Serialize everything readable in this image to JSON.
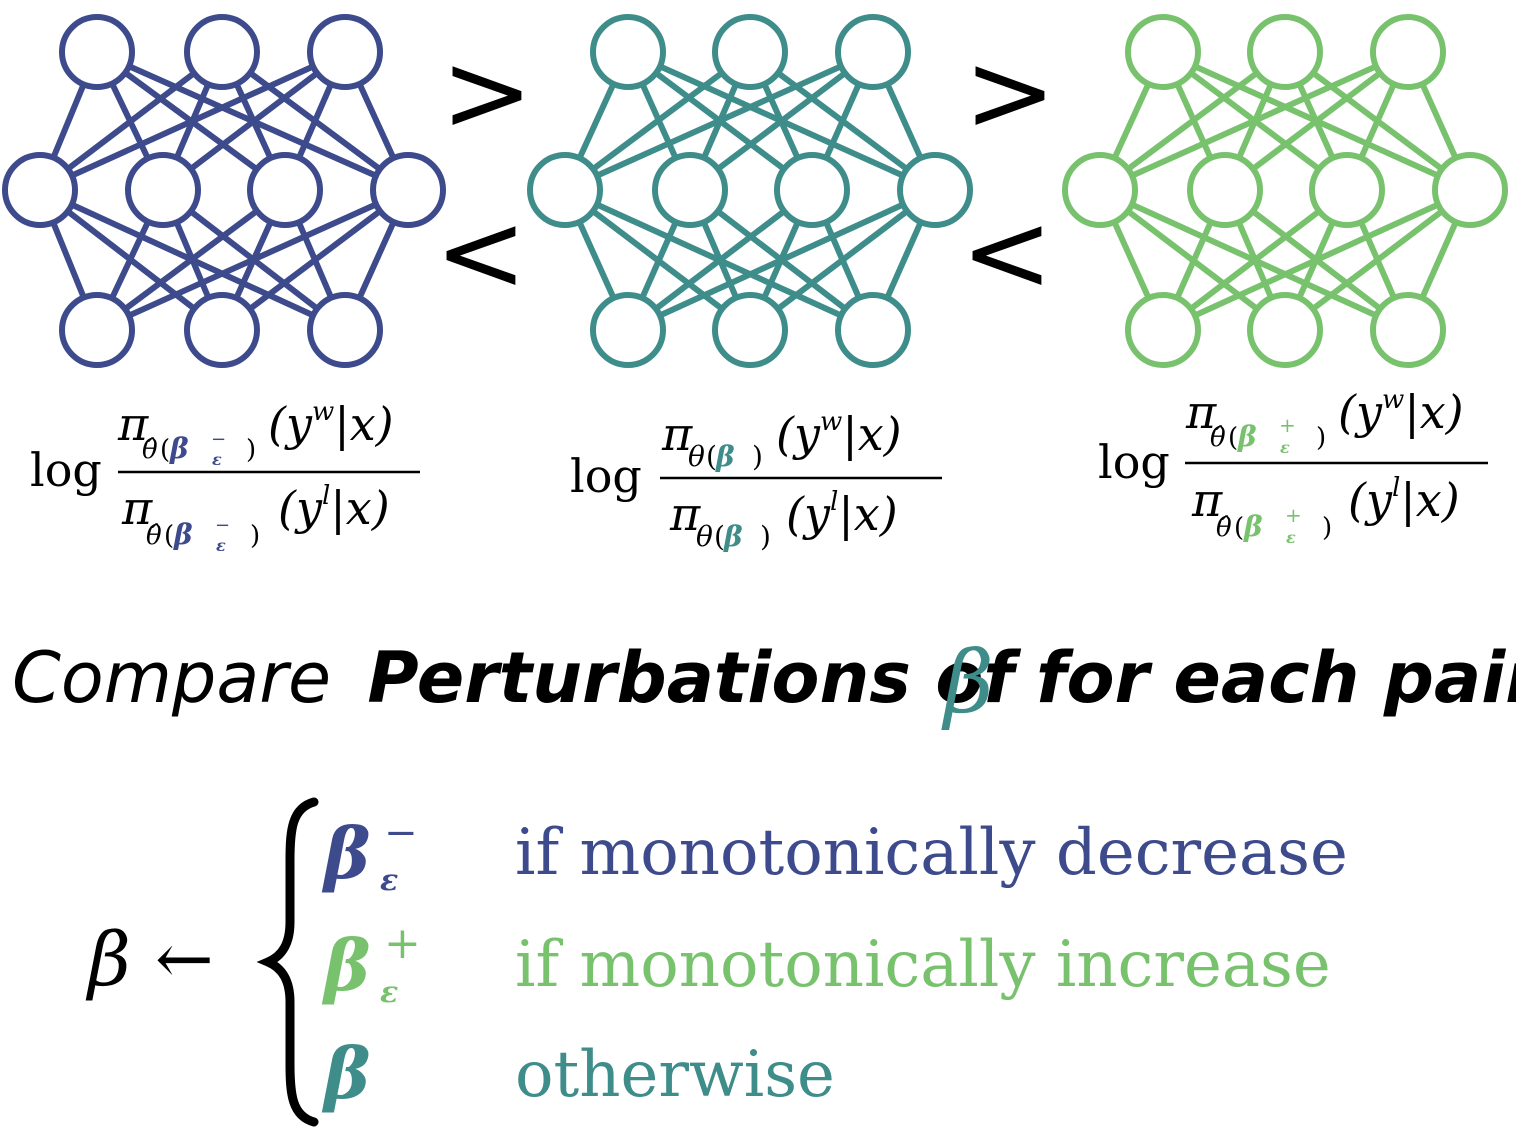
{
  "colors": {
    "left": "#3d4a8c",
    "middle": "#3e8d8a",
    "right": "#78c26e",
    "text": "#000000"
  },
  "comparisons": {
    "greater": ">",
    "less": "<"
  },
  "formulas": {
    "log": "log",
    "pi": "π",
    "theta_hat": "θ̂",
    "theta": "θ",
    "open_paren": "(",
    "close_paren": ")",
    "beta_bold": "β",
    "epsilon": "ε",
    "minus": "−",
    "plus": "+",
    "num_arg": "(y",
    "num_sup": "w",
    "den_arg": "(y",
    "den_sup": "l",
    "given_x": "|x)"
  },
  "title": {
    "word1": "Compare",
    "word2": "Perturbations of",
    "beta": "β",
    "word3": "for each pair"
  },
  "rule": {
    "lhs": "β",
    "arrow": "←",
    "cases": [
      {
        "sup": "−",
        "condition": "if monotonically decrease"
      },
      {
        "sup": "+",
        "condition": "if monotonically increase"
      },
      {
        "sup": "",
        "condition": "otherwise"
      }
    ]
  }
}
